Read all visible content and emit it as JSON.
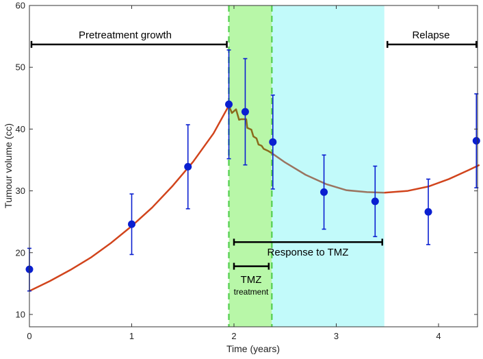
{
  "chart_data": {
    "type": "scatter",
    "title": "",
    "xlabel": "Time (years)",
    "ylabel": "Tumour volume (cc)",
    "xlim": [
      0,
      4.4
    ],
    "ylim": [
      8,
      60
    ],
    "xticks": [
      0,
      1,
      2,
      3,
      4
    ],
    "yticks": [
      10,
      20,
      30,
      40,
      50,
      60
    ],
    "grid": false,
    "regions": [
      {
        "name": "treatment",
        "x0": 1.95,
        "x1": 2.37,
        "color": "#b8f7a8"
      },
      {
        "name": "response",
        "x0": 2.37,
        "x1": 3.47,
        "color": "#c2fafa"
      }
    ],
    "treatment_boundaries": [
      1.95,
      2.37
    ],
    "observations": {
      "color": "#0a1fd0",
      "points": [
        {
          "x": 0.0,
          "y": 17.3,
          "lo": 13.8,
          "hi": 20.7
        },
        {
          "x": 1.0,
          "y": 24.6,
          "lo": 19.7,
          "hi": 29.5
        },
        {
          "x": 1.55,
          "y": 33.9,
          "lo": 27.1,
          "hi": 40.7
        },
        {
          "x": 1.95,
          "y": 44.0,
          "lo": 35.2,
          "hi": 52.8
        },
        {
          "x": 2.11,
          "y": 42.8,
          "lo": 34.2,
          "hi": 51.4
        },
        {
          "x": 2.38,
          "y": 37.9,
          "lo": 30.3,
          "hi": 45.5
        },
        {
          "x": 2.88,
          "y": 29.8,
          "lo": 23.8,
          "hi": 35.8
        },
        {
          "x": 3.38,
          "y": 28.3,
          "lo": 22.6,
          "hi": 34.0
        },
        {
          "x": 3.9,
          "y": 26.6,
          "lo": 21.3,
          "hi": 31.9
        },
        {
          "x": 4.37,
          "y": 38.1,
          "lo": 30.5,
          "hi": 45.7
        }
      ]
    },
    "model_curves": [
      {
        "name": "pretreatment",
        "color": "#d1441c",
        "x": [
          0.0,
          0.2,
          0.4,
          0.6,
          0.8,
          1.0,
          1.2,
          1.4,
          1.6,
          1.8,
          1.95
        ],
        "y": [
          13.8,
          15.4,
          17.2,
          19.2,
          21.6,
          24.3,
          27.3,
          30.8,
          34.7,
          39.3,
          43.8
        ]
      },
      {
        "name": "treatment",
        "color": "#8a6a1c",
        "x": [
          1.95,
          1.98,
          2.02,
          2.05,
          2.07,
          2.12,
          2.13,
          2.17,
          2.19,
          2.22,
          2.24,
          2.27,
          2.29,
          2.33,
          2.37
        ],
        "y": [
          43.8,
          42.6,
          43.2,
          41.5,
          41.6,
          41.6,
          40.2,
          39.9,
          38.8,
          38.5,
          37.5,
          37.3,
          36.8,
          36.5,
          36.1
        ]
      },
      {
        "name": "response",
        "color": "#9a7460",
        "x": [
          2.37,
          2.5,
          2.7,
          2.9,
          3.1,
          3.3,
          3.47
        ],
        "y": [
          36.1,
          34.6,
          32.6,
          31.1,
          30.1,
          29.8,
          29.7
        ]
      },
      {
        "name": "relapse",
        "color": "#d1441c",
        "x": [
          3.47,
          3.7,
          3.9,
          4.1,
          4.3,
          4.4
        ],
        "y": [
          29.7,
          30.0,
          30.7,
          31.9,
          33.4,
          34.2
        ]
      }
    ],
    "annotations": {
      "pretreatment_label": "Pretreatment growth",
      "relapse_label": "Relapse",
      "response_label": "Response to TMZ",
      "tmz_label": "TMZ",
      "treatment_label": "treatment"
    },
    "brackets": [
      {
        "name": "pretreatment",
        "x0": 0.02,
        "x1": 1.93,
        "y": 53.7
      },
      {
        "name": "relapse",
        "x0": 3.5,
        "x1": 4.37,
        "y": 53.7
      },
      {
        "name": "response",
        "x0": 2.0,
        "x1": 3.45,
        "y": 21.7
      },
      {
        "name": "tmz",
        "x0": 2.0,
        "x1": 2.34,
        "y": 17.8
      }
    ]
  }
}
